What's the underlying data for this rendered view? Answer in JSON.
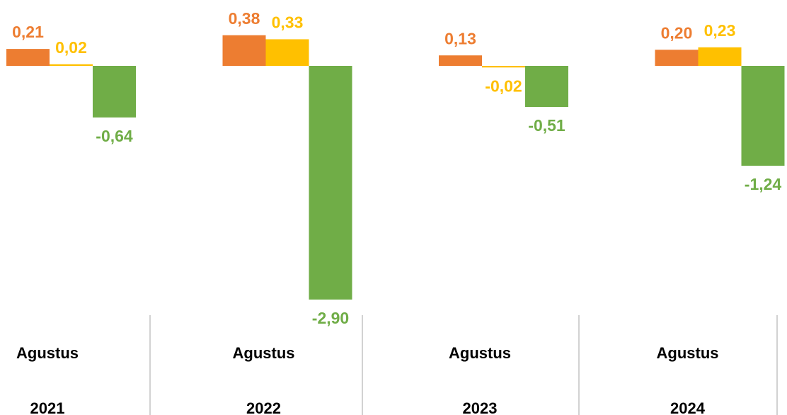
{
  "chart_data": {
    "type": "bar",
    "categories": [
      [
        "Agustus",
        "2021"
      ],
      [
        "Agustus",
        "2022"
      ],
      [
        "Agustus",
        "2023"
      ],
      [
        "Agustus",
        "2024"
      ]
    ],
    "series": [
      {
        "color": "#ED7D31",
        "values": [
          0.21,
          0.38,
          0.13,
          0.2
        ],
        "value_labels": [
          "0,21",
          "0,38",
          "0,13",
          "0,20"
        ]
      },
      {
        "color": "#FFC000",
        "values": [
          0.02,
          0.33,
          -0.02,
          0.23
        ],
        "value_labels": [
          "0,02",
          "0,33",
          "-0,02",
          "0,23"
        ]
      },
      {
        "color": "#70AD47",
        "values": [
          -0.64,
          -2.9,
          -0.51,
          -1.24
        ],
        "value_labels": [
          "-0,64",
          "-2,90",
          "-0,51",
          "-1,24"
        ]
      }
    ],
    "ylim": [
      -3,
      0.5
    ]
  }
}
